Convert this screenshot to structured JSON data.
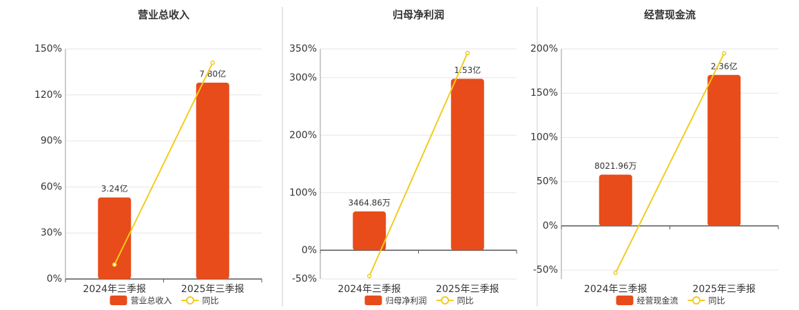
{
  "chart_data": [
    {
      "type": "combo",
      "title": "营业总收入",
      "categories": [
        "2024年三季报",
        "2025年三季报"
      ],
      "series": [
        {
          "name": "营业总收入",
          "type": "bar",
          "axis": "y2",
          "color": "#e84c1a",
          "values": [
            324000000,
            780000000
          ],
          "value_labels": [
            "3.24亿",
            "7.80亿"
          ]
        },
        {
          "name": "同比",
          "type": "line",
          "color": "#f2cb1d",
          "values": [
            9.4,
            141
          ]
        }
      ],
      "ylim": [
        0,
        150
      ],
      "yticks": [
        {
          "value": 0,
          "label": "0%"
        },
        {
          "value": 30,
          "label": "30%"
        },
        {
          "value": 60,
          "label": "60%"
        },
        {
          "value": 90,
          "label": "90%"
        },
        {
          "value": 120,
          "label": "120%"
        },
        {
          "value": 150,
          "label": "150%"
        }
      ],
      "y2lim": [
        0,
        914000000
      ],
      "grid": true
    },
    {
      "type": "combo",
      "title": "归母净利润",
      "categories": [
        "2024年三季报",
        "2025年三季报"
      ],
      "series": [
        {
          "name": "归母净利润",
          "type": "bar",
          "axis": "y2",
          "color": "#e84c1a",
          "values": [
            34648600,
            153000000
          ],
          "value_labels": [
            "3464.86万",
            "1.53亿"
          ]
        },
        {
          "name": "同比",
          "type": "line",
          "color": "#f2cb1d",
          "values": [
            -45,
            343
          ]
        }
      ],
      "ylim": [
        -50,
        350
      ],
      "yticks": [
        {
          "value": -50,
          "label": "-50%"
        },
        {
          "value": 0,
          "label": "0%"
        },
        {
          "value": 100,
          "label": "100%"
        },
        {
          "value": 200,
          "label": "200%"
        },
        {
          "value": 300,
          "label": "300%"
        },
        {
          "value": 350,
          "label": "350%"
        }
      ],
      "y2lim": [
        -25670000,
        179700000
      ],
      "grid": true
    },
    {
      "type": "combo",
      "title": "经营现金流",
      "categories": [
        "2024年三季报",
        "2025年三季报"
      ],
      "series": [
        {
          "name": "经营现金流",
          "type": "bar",
          "axis": "y2",
          "color": "#e84c1a",
          "values": [
            80219600,
            236000000
          ],
          "value_labels": [
            "8021.96万",
            "2.36亿"
          ]
        },
        {
          "name": "同比",
          "type": "line",
          "color": "#f2cb1d",
          "values": [
            -53,
            195
          ]
        }
      ],
      "ylim": [
        -60,
        200
      ],
      "yticks": [
        {
          "value": -50,
          "label": "-50%"
        },
        {
          "value": 0,
          "label": "0%"
        },
        {
          "value": 50,
          "label": "50%"
        },
        {
          "value": 100,
          "label": "100%"
        },
        {
          "value": 150,
          "label": "150%"
        },
        {
          "value": 200,
          "label": "200%"
        }
      ],
      "y2lim": [
        -83000000,
        276700000
      ],
      "grid": true
    }
  ]
}
